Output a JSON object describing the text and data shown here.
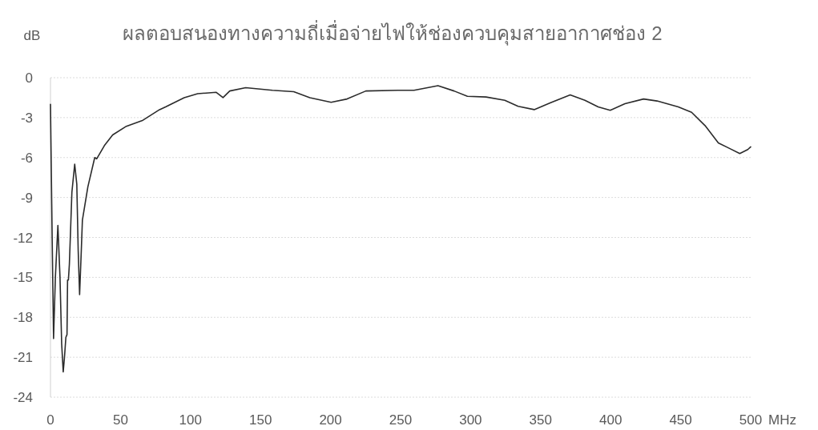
{
  "chart_data": {
    "type": "line",
    "title": "ผลตอบสนองทางความถี่เมื่อจ่ายไฟให้ช่องควบคุมสายอากาศช่อง 2",
    "xlabel": "MHz",
    "ylabel": "dB",
    "xlim": [
      0,
      500
    ],
    "ylim": [
      -24,
      0
    ],
    "xticks": [
      0,
      50,
      100,
      150,
      200,
      250,
      300,
      350,
      400,
      450,
      500
    ],
    "yticks": [
      -24,
      -21,
      -18,
      -15,
      -12,
      -9,
      -6,
      -3,
      0
    ],
    "grid": "y",
    "line_style": "solid",
    "series": [
      {
        "color": "#2b2b2b",
        "x": [
          0,
          1.2,
          2.2,
          3.5,
          5.3,
          6.8,
          8,
          9.1,
          10,
          11,
          11.8,
          12.2,
          12.8,
          13.5,
          15.3,
          17.3,
          18.8,
          19.8,
          20.8,
          22,
          22.8,
          26.7,
          31.6,
          33,
          38.5,
          44.4,
          54.2,
          66,
          77.9,
          82.2,
          95.5,
          105.1,
          118.4,
          123.2,
          128,
          139.4,
          158.5,
          173.7,
          185.2,
          200.4,
          211.8,
          225.2,
          248.1,
          259.6,
          276.7,
          288.2,
          297.7,
          311,
          324.4,
          333.9,
          345.4,
          356.8,
          371.1,
          381.6,
          391.1,
          399.7,
          410.2,
          423.5,
          433.1,
          448.3,
          457.8,
          467.4,
          476.9,
          484.6,
          492.2,
          497.9,
          500
        ],
        "values": [
          -2.0,
          -12,
          -19.6,
          -15,
          -11.1,
          -15,
          -20,
          -22.1,
          -21,
          -19.5,
          -19.3,
          -15.2,
          -15.2,
          -14,
          -8.6,
          -6.5,
          -8,
          -13,
          -16.3,
          -13,
          -10.7,
          -8.2,
          -6.0,
          -6.1,
          -5.1,
          -4.3,
          -3.65,
          -3.2,
          -2.4,
          -2.2,
          -1.5,
          -1.2,
          -1.1,
          -1.5,
          -1.0,
          -0.75,
          -0.95,
          -1.05,
          -1.5,
          -1.85,
          -1.6,
          -1.0,
          -0.95,
          -0.95,
          -0.6,
          -1.0,
          -1.4,
          -1.45,
          -1.7,
          -2.15,
          -2.4,
          -1.9,
          -1.3,
          -1.7,
          -2.2,
          -2.45,
          -1.95,
          -1.6,
          -1.75,
          -2.2,
          -2.6,
          -3.6,
          -4.9,
          -5.3,
          -5.7,
          -5.4,
          -5.2
        ]
      }
    ]
  }
}
